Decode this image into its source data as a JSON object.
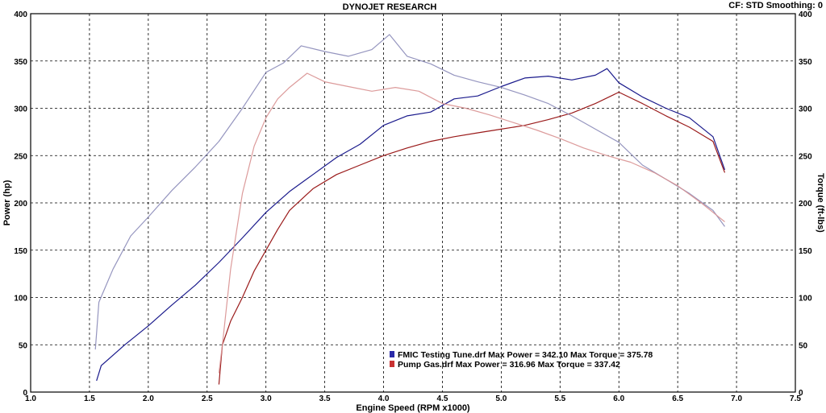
{
  "chart_data": {
    "type": "line",
    "title": "DYNOJET RESEARCH",
    "header_right": "CF: STD  Smoothing: 0",
    "xlabel": "Engine Speed (RPM x1000)",
    "ylabel_left": "Power (hp)",
    "ylabel_right": "Torque (ft-lbs)",
    "xlim": [
      1.0,
      7.5
    ],
    "ylim": [
      0,
      400
    ],
    "x_ticks": [
      "1.0",
      "1.5",
      "2.0",
      "2.5",
      "3.0",
      "3.5",
      "4.0",
      "4.5",
      "5.0",
      "5.5",
      "6.0",
      "6.5",
      "7.0",
      "7.5"
    ],
    "y_ticks": [
      "0",
      "50",
      "100",
      "150",
      "200",
      "250",
      "300",
      "350",
      "400"
    ],
    "grid": true,
    "legend": [
      {
        "text": "FMIC Testing Tune.drf Max Power = 342.10      Max Torque = 375.78",
        "color": "#2a2aa8"
      },
      {
        "text": "Pump Gas.drf Max Power = 316.96      Max Torque = 337.42",
        "color": "#c83232"
      }
    ],
    "series": [
      {
        "id": "fmic-power",
        "color": "#1a1a8c",
        "opacity": 1.0,
        "x": [
          1.56,
          1.6,
          1.8,
          2.0,
          2.2,
          2.4,
          2.6,
          2.8,
          3.0,
          3.2,
          3.4,
          3.6,
          3.8,
          4.0,
          4.2,
          4.4,
          4.6,
          4.8,
          5.0,
          5.2,
          5.4,
          5.6,
          5.8,
          5.9,
          6.0,
          6.2,
          6.4,
          6.6,
          6.8,
          6.9
        ],
        "y": [
          12,
          28,
          50,
          70,
          92,
          113,
          137,
          163,
          190,
          212,
          230,
          248,
          262,
          282,
          292,
          296,
          310,
          313,
          323,
          332,
          334,
          330,
          335,
          342,
          327,
          312,
          300,
          290,
          270,
          235
        ]
      },
      {
        "id": "pump-power",
        "color": "#9a1a1a",
        "opacity": 1.0,
        "x": [
          2.6,
          2.63,
          2.7,
          2.8,
          2.9,
          3.0,
          3.1,
          3.2,
          3.4,
          3.6,
          3.8,
          4.0,
          4.2,
          4.4,
          4.6,
          4.8,
          5.0,
          5.2,
          5.4,
          5.6,
          5.8,
          6.0,
          6.2,
          6.4,
          6.6,
          6.8,
          6.9
        ],
        "y": [
          8,
          50,
          75,
          100,
          128,
          150,
          172,
          192,
          215,
          230,
          240,
          250,
          258,
          265,
          270,
          274,
          278,
          282,
          288,
          295,
          305,
          317,
          305,
          292,
          280,
          265,
          232
        ]
      },
      {
        "id": "fmic-torque",
        "color": "#8a8ab8",
        "opacity": 0.9,
        "x": [
          1.55,
          1.58,
          1.7,
          1.85,
          2.0,
          2.2,
          2.4,
          2.6,
          2.8,
          3.0,
          3.15,
          3.3,
          3.5,
          3.7,
          3.9,
          4.05,
          4.2,
          4.4,
          4.6,
          4.8,
          5.0,
          5.2,
          5.4,
          5.6,
          5.8,
          6.0,
          6.2,
          6.4,
          6.6,
          6.8,
          6.9
        ],
        "y": [
          45,
          95,
          130,
          165,
          185,
          213,
          238,
          265,
          300,
          338,
          348,
          366,
          360,
          355,
          362,
          378,
          355,
          347,
          335,
          328,
          322,
          314,
          305,
          292,
          278,
          264,
          240,
          225,
          210,
          192,
          175
        ]
      },
      {
        "id": "pump-torque",
        "color": "#d89090",
        "opacity": 0.9,
        "x": [
          2.6,
          2.63,
          2.7,
          2.8,
          2.9,
          3.0,
          3.1,
          3.2,
          3.35,
          3.5,
          3.7,
          3.9,
          4.1,
          4.3,
          4.5,
          4.7,
          4.9,
          5.1,
          5.3,
          5.5,
          5.7,
          5.9,
          6.1,
          6.3,
          6.5,
          6.7,
          6.9
        ],
        "y": [
          20,
          50,
          130,
          210,
          260,
          290,
          310,
          322,
          337,
          328,
          323,
          318,
          322,
          318,
          305,
          300,
          293,
          285,
          277,
          268,
          258,
          250,
          243,
          232,
          218,
          200,
          180
        ]
      }
    ]
  }
}
